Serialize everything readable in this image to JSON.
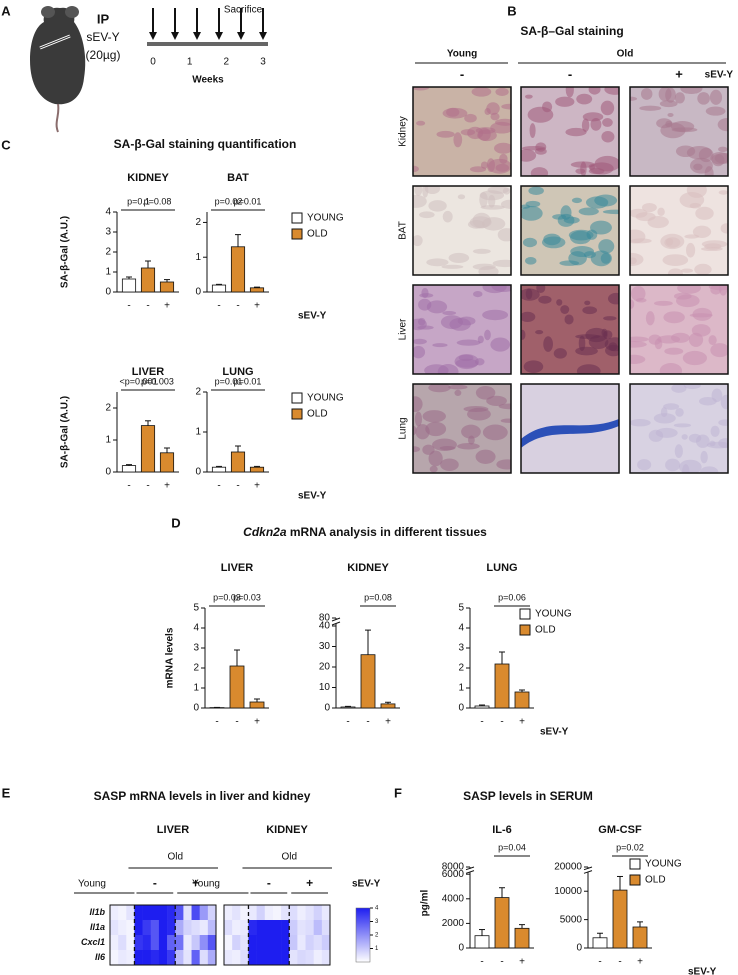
{
  "figure": {
    "panel_labels": [
      "A",
      "B",
      "C",
      "D",
      "E",
      "F"
    ],
    "panel_a": {
      "route": "IP",
      "treatment": "sEV-Y",
      "dose": "(20µg)",
      "event": "Sacrifice",
      "week_ticks": [
        0,
        1,
        2,
        3
      ],
      "axis_label": "Weeks"
    },
    "panel_b": {
      "title": "SA-β–Gal staining",
      "groups": [
        "Young",
        "Old"
      ],
      "treatments": [
        "-",
        "-",
        "+"
      ],
      "treatment_label": "sEV-Y",
      "tissues": [
        "Kidney",
        "BAT",
        "Liver",
        "Lung"
      ]
    },
    "panel_c": {
      "title": "SA-β-Gal staining quantification"
    },
    "panel_d": {
      "title_gene": "Cdkn2a",
      "title_rest": " mRNA analysis in different tissues"
    },
    "panel_e": {
      "title": "SASP mRNA levels in liver and kidney"
    },
    "panel_f": {
      "title": "SASP levels in SERUM"
    }
  },
  "chart_data": [
    {
      "type": "bar",
      "title": "KIDNEY",
      "ylabel": "SA-β-Gal (A.U.)",
      "categories": [
        "-",
        "-",
        "+"
      ],
      "values": [
        0.65,
        1.2,
        0.5
      ],
      "errors": [
        0.1,
        0.35,
        0.12
      ],
      "bar_colors": [
        "#ffffff",
        "#d98a2e",
        "#d98a2e"
      ],
      "ylim": [
        0,
        4
      ],
      "yticks": [
        0,
        1,
        2,
        3,
        4
      ],
      "annotations": [
        "p=0.1",
        "p=0.08"
      ]
    },
    {
      "type": "bar",
      "title": "BAT",
      "categories": [
        "-",
        "-",
        "+"
      ],
      "values": [
        0.2,
        1.3,
        0.12
      ],
      "errors": [
        0.02,
        0.35,
        0.02
      ],
      "bar_colors": [
        "#ffffff",
        "#d98a2e",
        "#d98a2e"
      ],
      "ylim": [
        0,
        2.3
      ],
      "yticks": [
        0,
        1,
        2
      ],
      "annotations": [
        "p=0.02",
        "p=0.01"
      ],
      "x_label": "sEV-Y",
      "legend": [
        {
          "name": "YOUNG",
          "color": "#ffffff"
        },
        {
          "name": "OLD",
          "color": "#d98a2e"
        }
      ]
    },
    {
      "type": "bar",
      "title": "LIVER",
      "ylabel": "SA-β-Gal (A.U.)",
      "categories": [
        "-",
        "-",
        "+"
      ],
      "values": [
        0.2,
        1.45,
        0.6
      ],
      "errors": [
        0.03,
        0.15,
        0.15
      ],
      "bar_colors": [
        "#ffffff",
        "#d98a2e",
        "#d98a2e"
      ],
      "ylim": [
        0,
        2.5
      ],
      "yticks": [
        0,
        1,
        2
      ],
      "annotations": [
        "<p=0.001",
        "p=0.003"
      ]
    },
    {
      "type": "bar",
      "title": "LUNG",
      "categories": [
        "-",
        "-",
        "+"
      ],
      "values": [
        0.12,
        0.5,
        0.12
      ],
      "errors": [
        0.02,
        0.15,
        0.02
      ],
      "bar_colors": [
        "#ffffff",
        "#d98a2e",
        "#d98a2e"
      ],
      "ylim": [
        0,
        2
      ],
      "yticks": [
        0,
        1,
        2
      ],
      "annotations": [
        "p=0.01",
        "p=0.01"
      ],
      "x_label": "sEV-Y",
      "legend": [
        {
          "name": "YOUNG",
          "color": "#ffffff"
        },
        {
          "name": "OLD",
          "color": "#d98a2e"
        }
      ]
    },
    {
      "type": "bar",
      "title": "LIVER",
      "ylabel": "mRNA levels",
      "categories": [
        "-",
        "-",
        "+"
      ],
      "values": [
        0.02,
        2.1,
        0.3
      ],
      "errors": [
        0.01,
        0.8,
        0.15
      ],
      "bar_colors": [
        "#ffffff",
        "#d98a2e",
        "#d98a2e"
      ],
      "ylim": [
        0,
        5
      ],
      "yticks": [
        0,
        1,
        2,
        3,
        4,
        5
      ],
      "annotations": [
        "p=0.03",
        "p=0.03"
      ]
    },
    {
      "type": "bar",
      "title": "KIDNEY",
      "categories": [
        "-",
        "-",
        "+"
      ],
      "values": [
        0.5,
        26,
        2
      ],
      "errors": [
        0.3,
        12,
        0.8
      ],
      "bar_colors": [
        "#ffffff",
        "#d98a2e",
        "#d98a2e"
      ],
      "ylim": [
        0,
        80
      ],
      "yticks": [
        0,
        10,
        20,
        30,
        40,
        80
      ],
      "ybreak": [
        40,
        80
      ],
      "annotations": [
        "p=0.08"
      ]
    },
    {
      "type": "bar",
      "title": "LUNG",
      "categories": [
        "-",
        "-",
        "+"
      ],
      "values": [
        0.1,
        2.2,
        0.8
      ],
      "errors": [
        0.05,
        0.6,
        0.1
      ],
      "bar_colors": [
        "#ffffff",
        "#d98a2e",
        "#d98a2e"
      ],
      "ylim": [
        0,
        5
      ],
      "yticks": [
        0,
        1,
        2,
        3,
        4,
        5
      ],
      "annotations": [
        "p=0.06"
      ],
      "x_label": "sEV-Y",
      "legend": [
        {
          "name": "YOUNG",
          "color": "#ffffff"
        },
        {
          "name": "OLD",
          "color": "#d98a2e"
        }
      ]
    },
    {
      "type": "bar",
      "title": "IL-6",
      "ylabel": "pg/ml",
      "categories": [
        "-",
        "-",
        "+"
      ],
      "values": [
        1000,
        4100,
        1600
      ],
      "errors": [
        500,
        800,
        300
      ],
      "bar_colors": [
        "#ffffff",
        "#d98a2e",
        "#d98a2e"
      ],
      "ylim": [
        0,
        8000
      ],
      "yticks": [
        0,
        2000,
        4000,
        6000,
        8000
      ],
      "ybreak": [
        6000,
        8000
      ],
      "annotations": [
        "p=0.04"
      ]
    },
    {
      "type": "bar",
      "title": "GM-CSF",
      "categories": [
        "-",
        "-",
        "+"
      ],
      "values": [
        1800,
        10200,
        3700
      ],
      "errors": [
        800,
        2400,
        900
      ],
      "bar_colors": [
        "#ffffff",
        "#d98a2e",
        "#d98a2e"
      ],
      "ylim": [
        0,
        20000
      ],
      "yticks": [
        0,
        5000,
        10000,
        20000
      ],
      "ybreak": [
        13000,
        20000
      ],
      "annotations": [
        "p=0.02"
      ],
      "x_label": "sEV-Y",
      "legend": [
        {
          "name": "YOUNG",
          "color": "#ffffff"
        },
        {
          "name": "OLD",
          "color": "#d98a2e"
        }
      ]
    },
    {
      "type": "heatmap",
      "title": "LIVER",
      "group": "Old",
      "rows": [
        "Il1b",
        "Il1a",
        "Cxcl1",
        "Il6"
      ],
      "zlim": [
        0,
        4
      ],
      "color": "#1e1ef0",
      "blocks": [
        {
          "label": "Young",
          "values": [
            [
              0.3,
              0.2,
              0.5
            ],
            [
              0.5,
              0.3,
              0.2
            ],
            [
              0.3,
              0.6,
              0.2
            ],
            [
              0.2,
              0.4,
              0.3
            ]
          ]
        },
        {
          "label": "-",
          "values": [
            [
              4,
              4,
              4,
              4,
              3.8
            ],
            [
              4,
              3.5,
              3,
              4,
              3.8
            ],
            [
              3.6,
              3.8,
              3,
              4,
              2.8
            ],
            [
              4,
              4,
              3.8,
              4,
              3.5
            ]
          ]
        },
        {
          "label": "+",
          "values": [
            [
              3,
              0.5,
              3.2,
              1.8,
              0.8
            ],
            [
              1.5,
              0.8,
              0.6,
              0.4,
              1.2
            ],
            [
              2.5,
              0.4,
              1,
              2,
              3
            ],
            [
              1.2,
              0.5,
              2.8,
              0.6,
              1.5
            ]
          ]
        }
      ]
    },
    {
      "type": "heatmap",
      "title": "KIDNEY",
      "group": "Old",
      "zlim": [
        0,
        4
      ],
      "zticks": [
        1,
        2,
        3,
        4
      ],
      "color": "#1e1ef0",
      "x_label": "sEV-Y",
      "blocks": [
        {
          "label": "Young",
          "values": [
            [
              0.3,
              0.5,
              0.2
            ],
            [
              0.6,
              0.3,
              0.4
            ],
            [
              0.2,
              0.8,
              0.5
            ],
            [
              0.4,
              0.3,
              0.6
            ]
          ]
        },
        {
          "label": "-",
          "values": [
            [
              0.4,
              0.8,
              0.3,
              0.2,
              0.5
            ],
            [
              3.8,
              4,
              4,
              4,
              4
            ],
            [
              4,
              4,
              4,
              4,
              4
            ],
            [
              4,
              4,
              4,
              4,
              4
            ]
          ]
        },
        {
          "label": "+",
          "values": [
            [
              0.6,
              0.3,
              0.5,
              0.8,
              0.4
            ],
            [
              0.9,
              0.5,
              0.6,
              1.2,
              0.6
            ],
            [
              1,
              0.4,
              0.8,
              0.6,
              0.9
            ],
            [
              0.5,
              0.7,
              0.6,
              0.3,
              0.5
            ]
          ]
        }
      ]
    }
  ]
}
